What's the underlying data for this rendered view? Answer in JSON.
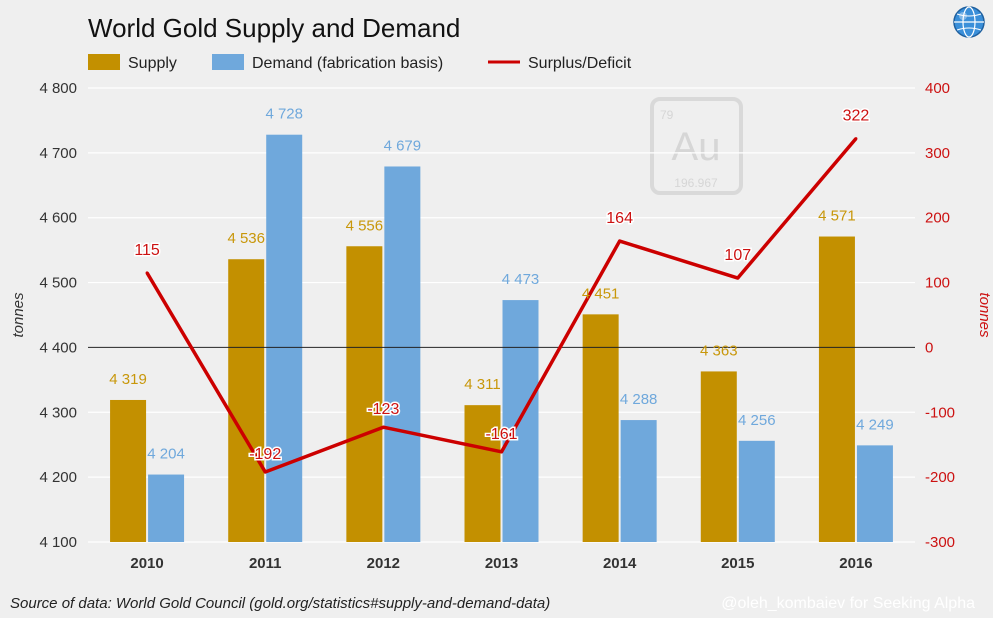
{
  "chart_data": {
    "type": "bar",
    "title": "World Gold Supply and Demand",
    "categories": [
      "2010",
      "2011",
      "2012",
      "2013",
      "2014",
      "2015",
      "2016"
    ],
    "series": [
      {
        "name": "Supply",
        "axis": "left",
        "type": "bar",
        "color": "#c39000",
        "values": [
          4319,
          4536,
          4556,
          4311,
          4451,
          4363,
          4571
        ],
        "labels": [
          "4 319",
          "4 536",
          "4 556",
          "4 311",
          "4 451",
          "4 363",
          "4 571"
        ]
      },
      {
        "name": "Demand (fabrication basis)",
        "axis": "left",
        "type": "bar",
        "color": "#6fa8dc",
        "values": [
          4204,
          4728,
          4679,
          4473,
          4288,
          4256,
          4249
        ],
        "labels": [
          "4 204",
          "4 728",
          "4 679",
          "4 473",
          "4 288",
          "4 256",
          "4 249"
        ]
      },
      {
        "name": "Surplus/Deficit",
        "axis": "right",
        "type": "line",
        "color": "#cc0000",
        "values": [
          115,
          -192,
          -123,
          -161,
          164,
          107,
          322
        ],
        "labels": [
          "115",
          "-192",
          "-123",
          "-161",
          "164",
          "107",
          "322"
        ]
      }
    ],
    "ylabel": "tonnes",
    "ylabel_right": "tonnes",
    "ylim": [
      4100,
      4800
    ],
    "ylim_right": [
      -300,
      400
    ],
    "yticks": [
      4100,
      4200,
      4300,
      4400,
      4500,
      4600,
      4700,
      4800
    ],
    "yticks_labels": [
      "4 100",
      "4 200",
      "4 300",
      "4 400",
      "4 500",
      "4 600",
      "4 700",
      "4 800"
    ],
    "yticks_right": [
      -300,
      -200,
      -100,
      0,
      100,
      200,
      300,
      400
    ],
    "yticks_right_labels": [
      "-300",
      "-200",
      "-100",
      "0",
      "100",
      "200",
      "300",
      "400"
    ],
    "grid": true,
    "legend": "top-left"
  },
  "watermark": {
    "symbol": "Au",
    "number": "79",
    "mass": "196.967"
  },
  "globe_icon": "globe-icon",
  "footer": {
    "source": "Source of data: World Gold Council (gold.org/statistics#supply-and-demand-data)",
    "credit": "@oleh_kombaiev for Seeking Alpha"
  }
}
